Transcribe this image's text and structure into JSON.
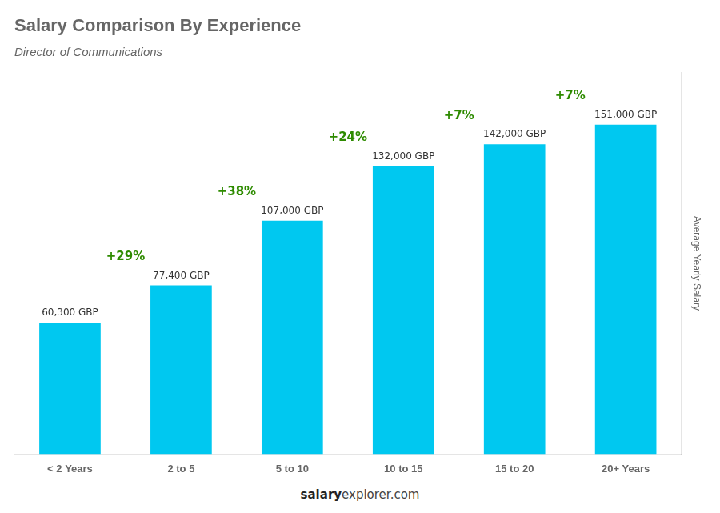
{
  "chart_data": {
    "type": "bar",
    "title": "Salary Comparison By Experience",
    "subtitle": "Director of Communications",
    "categories": [
      "< 2 Years",
      "2 to 5",
      "5 to 10",
      "10 to 15",
      "15 to 20",
      "20+ Years"
    ],
    "values": [
      60300,
      77400,
      107000,
      132000,
      142000,
      151000
    ],
    "value_labels": [
      "60,300 GBP",
      "77,400 GBP",
      "107,000 GBP",
      "132,000 GBP",
      "142,000 GBP",
      "151,000 GBP"
    ],
    "data_labels": true,
    "annotations": [
      "+29%",
      "+38%",
      "+24%",
      "+7%",
      "+7%"
    ],
    "ylabel": "Average Yearly Salary",
    "footer": [
      "salary",
      "explorer.com"
    ],
    "color": "#00c8f0",
    "ylim": [
      0,
      175000
    ],
    "tick_labels": "x",
    "grid": false
  }
}
